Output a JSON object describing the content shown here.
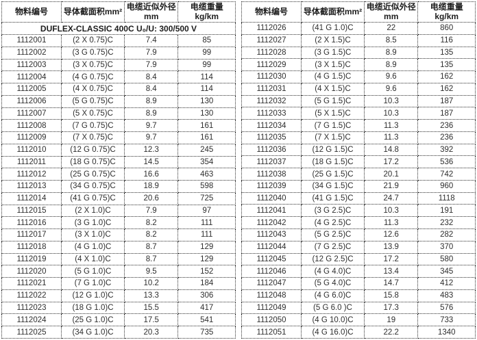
{
  "page": {
    "background_color": "#ffffff",
    "border_color": "#2b2b2b",
    "text_color": "#2e2e2e",
    "header_text_color": "#1c1c1c"
  },
  "column_headers": [
    "物料编号",
    "导体截面积mm²",
    "电缆近似外径\nmm",
    "电缆重量kg/km"
  ],
  "left_table": {
    "title_row": "DUFLEX-CLASSIC 400C  U₀/U: 300/500 V",
    "rows": [
      [
        "1112001",
        "(2 X 0.75)C",
        "7.4",
        "85"
      ],
      [
        "1112002",
        "(3 G 0.75)C",
        "7.9",
        "99"
      ],
      [
        "1112003",
        "(3 X 0.75)C",
        "7.9",
        "99"
      ],
      [
        "1112004",
        "(4 G 0.75)C",
        "8.4",
        "114"
      ],
      [
        "1112005",
        "(4 X 0.75)C",
        "8.4",
        "114"
      ],
      [
        "1112006",
        "(5 G 0.75)C",
        "8.9",
        "130"
      ],
      [
        "1112007",
        "(5 X 0.75)C",
        "8.9",
        "130"
      ],
      [
        "1112008",
        "(7 G 0.75)C",
        "9.7",
        "161"
      ],
      [
        "1112009",
        "(7 X 0.75)C",
        "9.7",
        "161"
      ],
      [
        "1112010",
        "(12 G 0.75)C",
        "12.3",
        "245"
      ],
      [
        "1112011",
        "(18 G 0.75)C",
        "14.5",
        "354"
      ],
      [
        "1112012",
        "(25 G 0.75)C",
        "16.6",
        "463"
      ],
      [
        "1112013",
        "(34 G 0.75)C",
        "18.9",
        "598"
      ],
      [
        "1112014",
        "(41 G 0.75)C",
        "20.6",
        "725"
      ],
      [
        "1112015",
        "(2 X 1.0)C",
        "7.9",
        "97"
      ],
      [
        "1112016",
        "(3 G 1.0)C",
        "8.2",
        "111"
      ],
      [
        "1112017",
        "(3 X 1.0)C",
        "8.2",
        "111"
      ],
      [
        "1112018",
        "(4 G 1.0)C",
        "8.7",
        "129"
      ],
      [
        "1112019",
        "(4 X 1.0)C",
        "8.7",
        "129"
      ],
      [
        "1112020",
        "(5 G 1.0)C",
        "9.5",
        "152"
      ],
      [
        "1112021",
        "(7 G 1.0)C",
        "10.2",
        "184"
      ],
      [
        "1112022",
        "(12 G 1.0)C",
        "13.3",
        "306"
      ],
      [
        "1112023",
        "(18 G 1.0)C",
        "15.5",
        "417"
      ],
      [
        "1112024",
        "(25 G 1.0)C",
        "17.5",
        "541"
      ],
      [
        "1112025",
        "(34 G 1.0)C",
        "20.3",
        "735"
      ]
    ]
  },
  "right_table": {
    "rows": [
      [
        "1112026",
        "(41 G 1.0)C",
        "22",
        "860"
      ],
      [
        "1112027",
        "(2 X 1.5)C",
        "8.5",
        "116"
      ],
      [
        "1112028",
        "(3 G 1.5)C",
        "8.9",
        "135"
      ],
      [
        "1112029",
        "(3 X 1.5)C",
        "8.9",
        "135"
      ],
      [
        "1112030",
        "(4 G 1.5)C",
        "9.6",
        "162"
      ],
      [
        "1112031",
        "(4 X 1.5)C",
        "9.6",
        "162"
      ],
      [
        "1112032",
        "(5 G 1.5)C",
        "10.3",
        "187"
      ],
      [
        "1112033",
        "(5 X 1.5)C",
        "10.3",
        "187"
      ],
      [
        "1112034",
        "(7 G 1.5)C",
        "11.3",
        "236"
      ],
      [
        "1112035",
        "(7 X 1.5)C",
        "11.3",
        "236"
      ],
      [
        "1112036",
        "(12 G 1.5)C",
        "14.8",
        "392"
      ],
      [
        "1112037",
        "(18 G 1.5)C",
        "17.2",
        "536"
      ],
      [
        "1112038",
        "(25 G 1.5)C",
        "20.1",
        "742"
      ],
      [
        "1112039",
        "(34 G 1.5)C",
        "21.9",
        "960"
      ],
      [
        "1112040",
        "(41 G 1.5)C",
        "24.7",
        "1118"
      ],
      [
        "1112041",
        "(3 G 2.5)C",
        "10.3",
        "191"
      ],
      [
        "1112042",
        "(4 G 2.5)C",
        "11.3",
        "232"
      ],
      [
        "1112043",
        "(5 G 2.5)C",
        "12.6",
        "282"
      ],
      [
        "1112044",
        "(7 G 2.5)C",
        "13.9",
        "370"
      ],
      [
        "1112045",
        "(12 G 2.5)C",
        "17.2",
        "580"
      ],
      [
        "1112046",
        "(4 G 4.0)C",
        "13.4",
        "345"
      ],
      [
        "1112047",
        "(5 G 4.0)C",
        "14.7",
        "412"
      ],
      [
        "1112048",
        "(4 G 6.0)C",
        "15.8",
        "483"
      ],
      [
        "1112049",
        "(5 G 6.0 )C",
        "17.3",
        "576"
      ],
      [
        "1112050",
        "(4 G 10.0)C",
        "19",
        "733"
      ],
      [
        "1112051",
        "(4 G 16.0)C",
        "22.2",
        "1340"
      ]
    ]
  },
  "column_semantics": [
    "material-number",
    "conductor-cross-section",
    "outer-diameter",
    "cable-weight"
  ],
  "column_widths_pct": [
    25.5,
    27,
    23,
    24.5
  ]
}
